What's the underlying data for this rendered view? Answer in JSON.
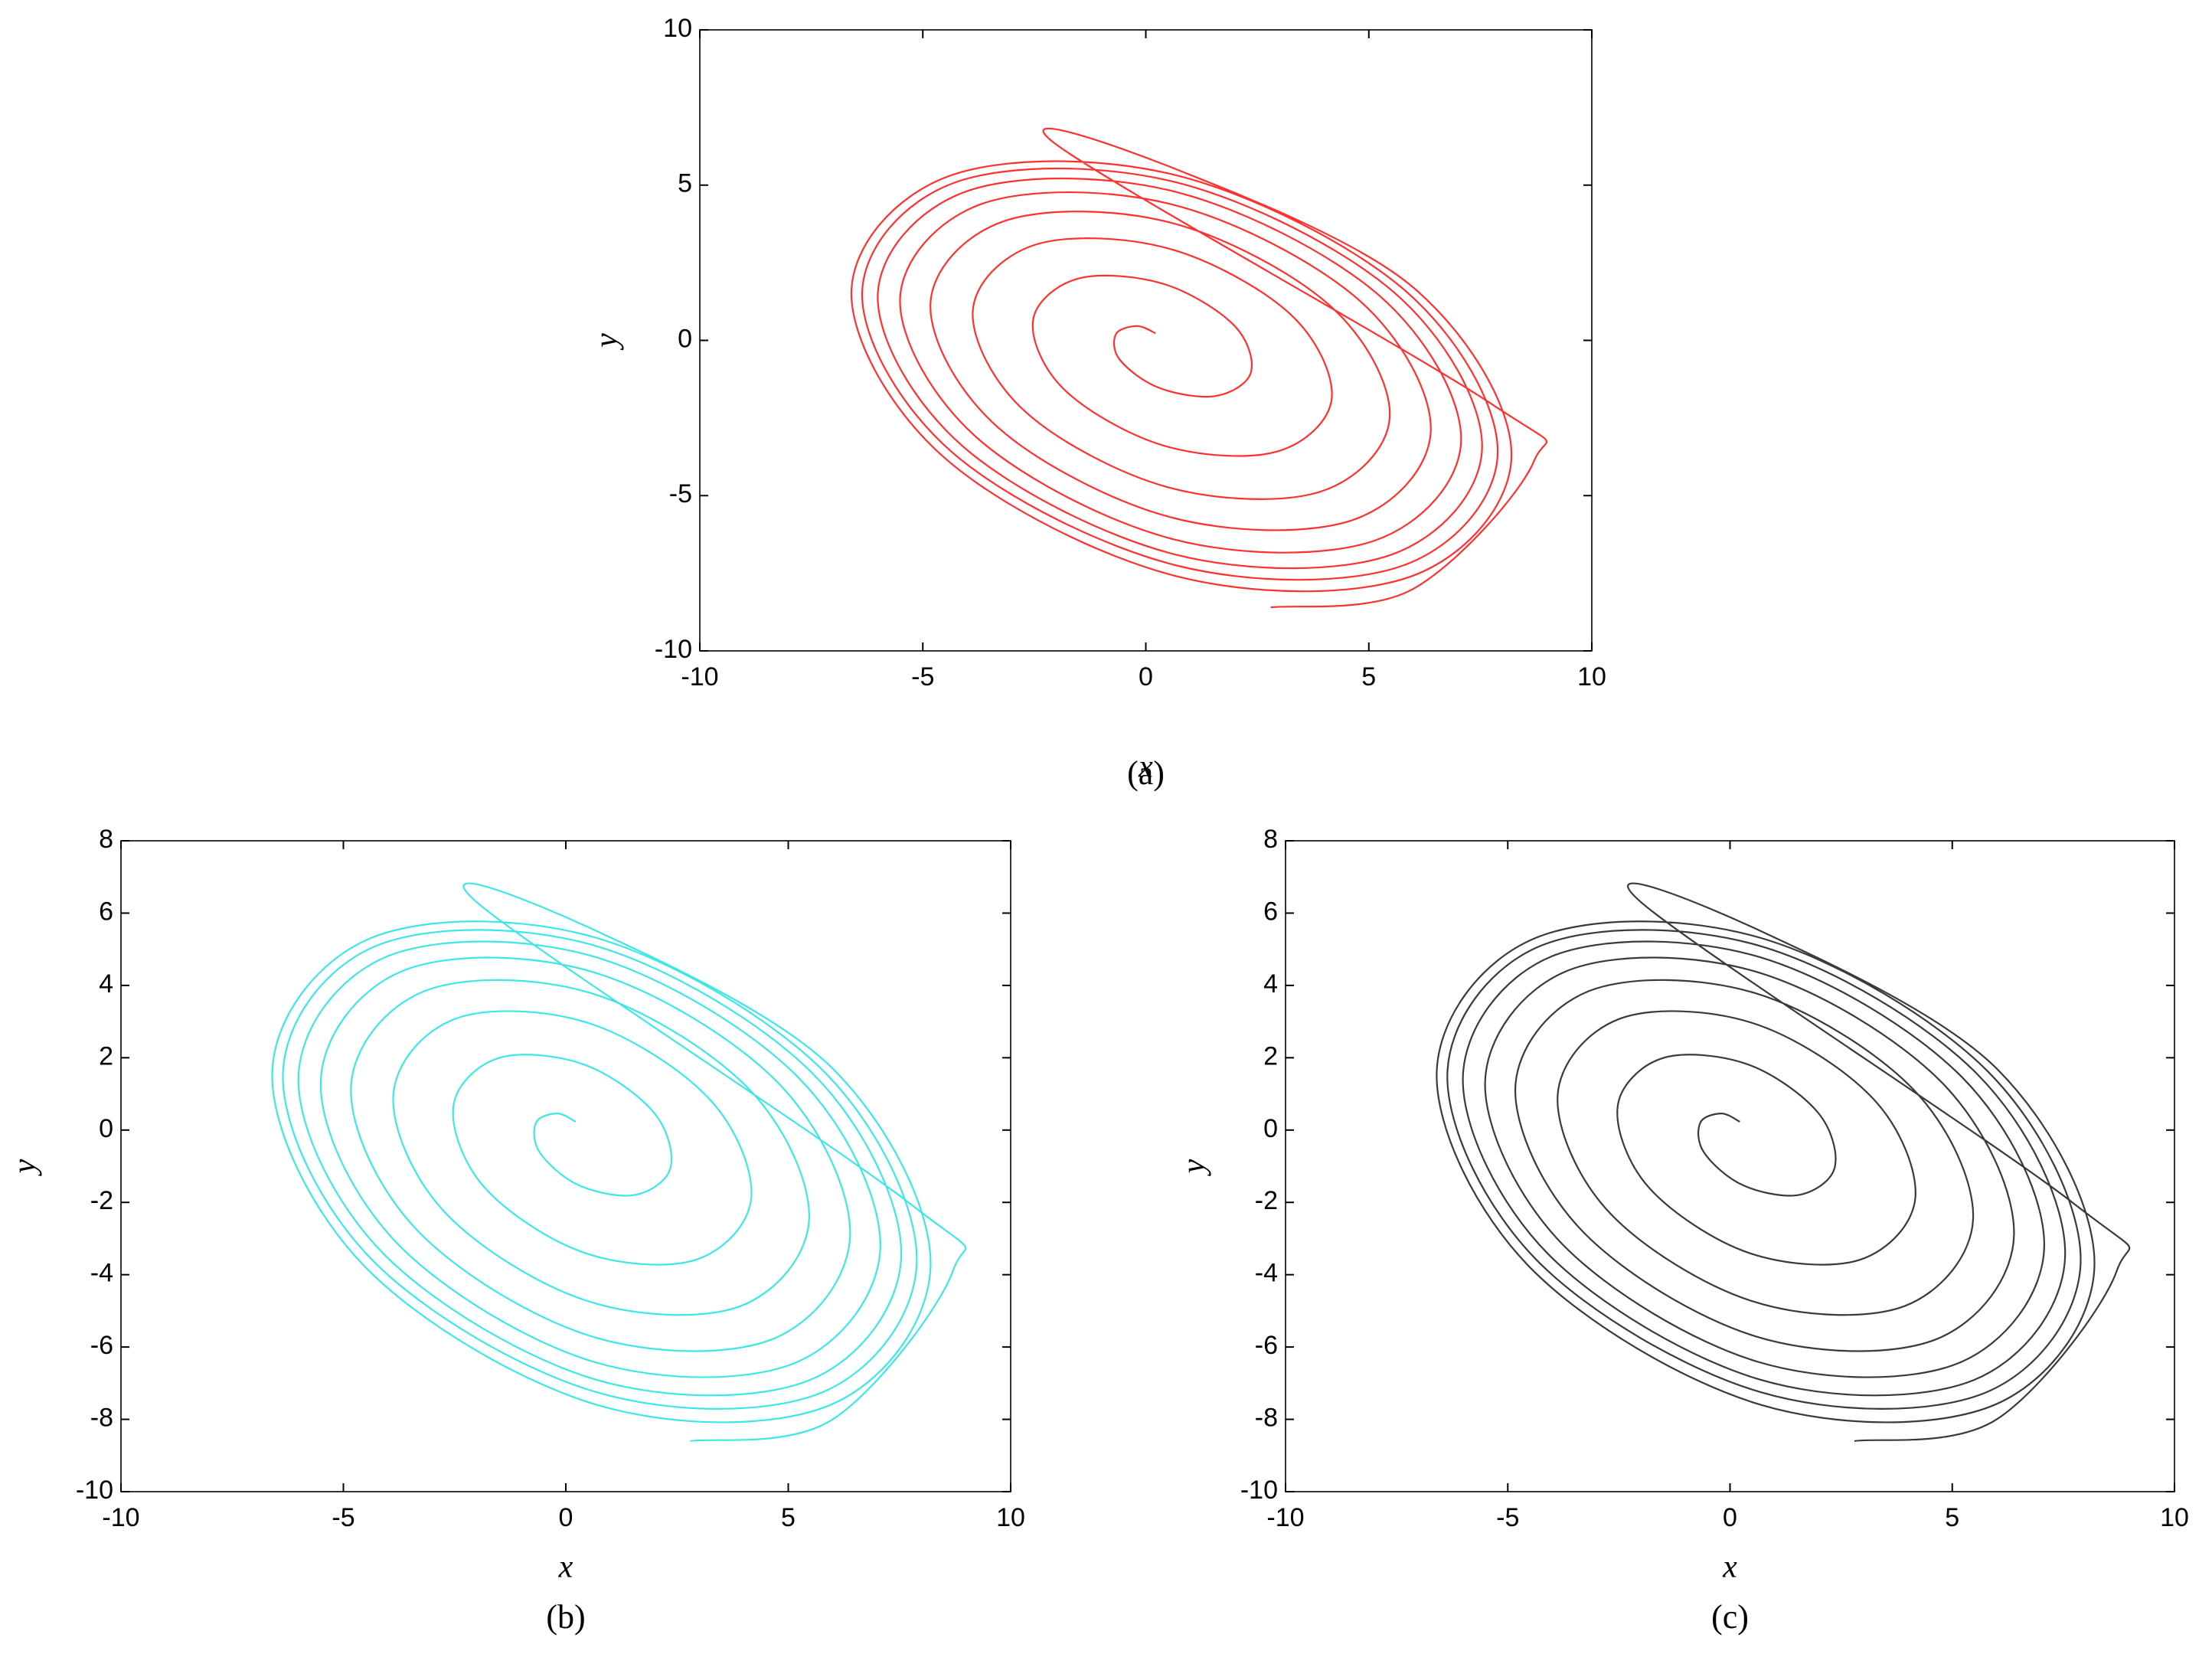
{
  "chart_data": [
    {
      "type": "line",
      "caption": "(a)",
      "xlabel": "x",
      "ylabel": "y",
      "xlim": [
        -10,
        10
      ],
      "ylim": [
        -10,
        10
      ],
      "xticks": [
        -10,
        -5,
        0,
        5,
        10
      ],
      "yticks": [
        -10,
        -5,
        0,
        5,
        10
      ],
      "x": [
        0.22,
        -0.2,
        -0.67,
        -0.58,
        0.3,
        1.57,
        2.36,
        1.96,
        0.37,
        -1.54,
        -2.53,
        -1.81,
        0.43,
        2.94,
        4.17,
        3.22,
        0.48,
        -2.5,
        -3.88,
        -2.69,
        0.52,
        3.92,
        5.47,
        4.12,
        0.56,
        -3.18,
        -4.83,
        -3.31,
        0.59,
        4.63,
        6.39,
        4.77,
        0.61,
        -3.67,
        -5.51,
        -3.76,
        0.63,
        5.13,
        7.07,
        5.23,
        0.65,
        -4.02,
        -6.01,
        -4.09,
        0.67,
        5.49,
        7.54,
        5.57,
        0.68,
        -4.27,
        -6.36,
        -4.33,
        0.69,
        5.75,
        7.89,
        5.81,
        0.7,
        -4.4,
        -6.6,
        -4.5,
        0.7,
        5.95,
        8.2,
        6.0,
        0.7,
        -2.0,
        7.7,
        8.7,
        6.0,
        2.8
      ],
      "series": [
        {
          "color": "#ff3030",
          "values": [
            0.23,
            0.46,
            0.2,
            -0.63,
            -1.53,
            -1.79,
            -1.01,
            0.51,
            1.83,
            1.98,
            0.62,
            -1.61,
            -3.4,
            -3.58,
            -1.86,
            0.87,
            2.97,
            3.07,
            0.93,
            -2.31,
            -4.74,
            -4.87,
            -2.46,
            1.13,
            3.79,
            3.84,
            1.15,
            -2.81,
            -5.71,
            -5.79,
            -2.9,
            1.31,
            4.37,
            4.4,
            1.3,
            -3.17,
            -6.41,
            -6.45,
            -3.21,
            1.45,
            4.79,
            4.8,
            1.42,
            -3.43,
            -6.9,
            -6.91,
            -3.44,
            1.54,
            5.09,
            5.09,
            1.5,
            -3.62,
            -7.25,
            -7.26,
            -3.6,
            1.61,
            5.31,
            5.3,
            1.55,
            -3.8,
            -7.6,
            -7.6,
            -3.7,
            1.7,
            5.5,
            6.3,
            -2.0,
            -3.9,
            -8.0,
            -8.6
          ]
        }
      ]
    },
    {
      "type": "line",
      "caption": "(b)",
      "xlabel": "x",
      "ylabel": "y",
      "xlim": [
        -10,
        10
      ],
      "ylim": [
        -10,
        8
      ],
      "xticks": [
        -10,
        -5,
        0,
        5,
        10
      ],
      "yticks": [
        -10,
        -8,
        -6,
        -4,
        -2,
        0,
        2,
        4,
        6,
        8
      ],
      "x": [
        0.22,
        -0.2,
        -0.67,
        -0.58,
        0.3,
        1.57,
        2.36,
        1.96,
        0.37,
        -1.54,
        -2.53,
        -1.81,
        0.43,
        2.94,
        4.17,
        3.22,
        0.48,
        -2.5,
        -3.88,
        -2.69,
        0.52,
        3.92,
        5.47,
        4.12,
        0.56,
        -3.18,
        -4.83,
        -3.31,
        0.59,
        4.63,
        6.39,
        4.77,
        0.61,
        -3.67,
        -5.51,
        -3.76,
        0.63,
        5.13,
        7.07,
        5.23,
        0.65,
        -4.02,
        -6.01,
        -4.09,
        0.67,
        5.49,
        7.54,
        5.57,
        0.68,
        -4.27,
        -6.36,
        -4.33,
        0.69,
        5.75,
        7.89,
        5.81,
        0.7,
        -4.4,
        -6.6,
        -4.5,
        0.7,
        5.95,
        8.2,
        6.0,
        0.7,
        -2.0,
        7.7,
        8.7,
        6.0,
        2.8
      ],
      "series": [
        {
          "color": "#3ee6e6",
          "values": [
            0.23,
            0.46,
            0.2,
            -0.63,
            -1.53,
            -1.79,
            -1.01,
            0.51,
            1.83,
            1.98,
            0.62,
            -1.61,
            -3.4,
            -3.58,
            -1.86,
            0.87,
            2.97,
            3.07,
            0.93,
            -2.31,
            -4.74,
            -4.87,
            -2.46,
            1.13,
            3.79,
            3.84,
            1.15,
            -2.81,
            -5.71,
            -5.79,
            -2.9,
            1.31,
            4.37,
            4.4,
            1.3,
            -3.17,
            -6.41,
            -6.45,
            -3.21,
            1.45,
            4.79,
            4.8,
            1.42,
            -3.43,
            -6.9,
            -6.91,
            -3.44,
            1.54,
            5.09,
            5.09,
            1.5,
            -3.62,
            -7.25,
            -7.26,
            -3.6,
            1.61,
            5.31,
            5.3,
            1.55,
            -3.8,
            -7.6,
            -7.6,
            -3.7,
            1.7,
            5.5,
            6.3,
            -2.0,
            -3.9,
            -8.0,
            -8.6
          ]
        }
      ]
    },
    {
      "type": "line",
      "caption": "(c)",
      "xlabel": "x",
      "ylabel": "y",
      "xlim": [
        -10,
        10
      ],
      "ylim": [
        -10,
        8
      ],
      "xticks": [
        -10,
        -5,
        0,
        5,
        10
      ],
      "yticks": [
        -10,
        -8,
        -6,
        -4,
        -2,
        0,
        2,
        4,
        6,
        8
      ],
      "x": [
        0.22,
        -0.2,
        -0.67,
        -0.58,
        0.3,
        1.57,
        2.36,
        1.96,
        0.37,
        -1.54,
        -2.53,
        -1.81,
        0.43,
        2.94,
        4.17,
        3.22,
        0.48,
        -2.5,
        -3.88,
        -2.69,
        0.52,
        3.92,
        5.47,
        4.12,
        0.56,
        -3.18,
        -4.83,
        -3.31,
        0.59,
        4.63,
        6.39,
        4.77,
        0.61,
        -3.67,
        -5.51,
        -3.76,
        0.63,
        5.13,
        7.07,
        5.23,
        0.65,
        -4.02,
        -6.01,
        -4.09,
        0.67,
        5.49,
        7.54,
        5.57,
        0.68,
        -4.27,
        -6.36,
        -4.33,
        0.69,
        5.75,
        7.89,
        5.81,
        0.7,
        -4.4,
        -6.6,
        -4.5,
        0.7,
        5.95,
        8.2,
        6.0,
        0.7,
        -2.0,
        7.7,
        8.7,
        6.0,
        2.8
      ],
      "series": [
        {
          "color": "#3a3a3a",
          "values": [
            0.23,
            0.46,
            0.2,
            -0.63,
            -1.53,
            -1.79,
            -1.01,
            0.51,
            1.83,
            1.98,
            0.62,
            -1.61,
            -3.4,
            -3.58,
            -1.86,
            0.87,
            2.97,
            3.07,
            0.93,
            -2.31,
            -4.74,
            -4.87,
            -2.46,
            1.13,
            3.79,
            3.84,
            1.15,
            -2.81,
            -5.71,
            -5.79,
            -2.9,
            1.31,
            4.37,
            4.4,
            1.3,
            -3.17,
            -6.41,
            -6.45,
            -3.21,
            1.45,
            4.79,
            4.8,
            1.42,
            -3.43,
            -6.9,
            -6.91,
            -3.44,
            1.54,
            5.09,
            5.09,
            1.5,
            -3.62,
            -7.25,
            -7.26,
            -3.6,
            1.61,
            5.31,
            5.3,
            1.55,
            -3.8,
            -7.6,
            -7.6,
            -3.7,
            1.7,
            5.5,
            6.3,
            -2.0,
            -3.9,
            -8.0,
            -8.6
          ]
        }
      ]
    }
  ]
}
